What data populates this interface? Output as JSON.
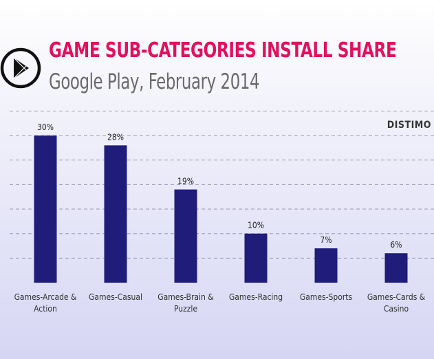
{
  "header": {
    "title": "GAME SUB-CATEGORIES INSTALL SHARE",
    "subtitle": "Google Play, February 2014",
    "brand": "DISTIMO",
    "icon": "google-play-icon"
  },
  "colors": {
    "title": "#e0115f",
    "bar": "#1f1c7a",
    "subtitle": "#6a6a6a"
  },
  "chart_data": {
    "type": "bar",
    "title": "GAME SUB-CATEGORIES INSTALL SHARE",
    "subtitle": "Google Play, February 2014",
    "categories": [
      [
        "Games-Arcade &",
        "Action"
      ],
      [
        "Games-Casual"
      ],
      [
        "Games-Brain &",
        "Puzzle"
      ],
      [
        "Games-Racing"
      ],
      [
        "Games-Sports"
      ],
      [
        "Games-Cards &",
        "Casino"
      ]
    ],
    "values": [
      30,
      28,
      19,
      10,
      7,
      6
    ],
    "data_labels": [
      "30%",
      "28%",
      "19%",
      "10%",
      "7%",
      "6%"
    ],
    "unit": "%",
    "ylim": [
      0,
      35
    ],
    "grid": true,
    "grid_step": 5,
    "legend": "none"
  }
}
